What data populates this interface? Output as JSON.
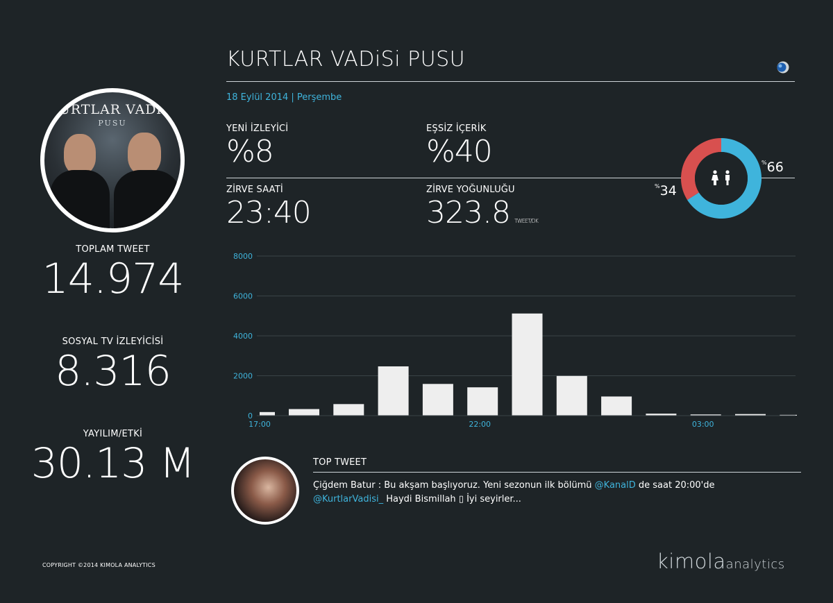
{
  "poster": {
    "title": "KURTLAR VADiSi",
    "subtitle": "PUSU"
  },
  "left_stats": [
    {
      "label": "TOPLAM TWEET",
      "value": "14.974"
    },
    {
      "label": "SOSYAL TV İZLEYİCİSİ",
      "value": "8.316"
    },
    {
      "label": "YAYILIM/ETKİ",
      "value": "30.13 M"
    }
  ],
  "header": {
    "title": "KURTLAR VADiSi PUSU",
    "date": "18 Eylül 2014 | Perşembe"
  },
  "kpis": {
    "new_viewers": {
      "label": "YENİ İZLEYİCİ",
      "value": "%8"
    },
    "unique_content": {
      "label": "EŞSİZ İÇERİK",
      "value": "%40"
    },
    "peak_hour": {
      "label": "ZİRVE SAATİ",
      "value": "23:40"
    },
    "peak_density": {
      "label": "ZİRVE YOĞUNLUĞU",
      "value": "323.8",
      "unit": "TWEET/DK"
    }
  },
  "gender": {
    "female": {
      "pct": 34,
      "label": "34",
      "prefix": "%",
      "color": "#d8504f"
    },
    "male": {
      "pct": 66,
      "label": "66",
      "prefix": "%",
      "color": "#3fb4dc"
    },
    "center_color": "#1e2427"
  },
  "chart_data": {
    "type": "bar",
    "title": "",
    "xlabel": "",
    "ylabel": "",
    "ylim": [
      0,
      8000
    ],
    "yticks": [
      "0",
      "2000",
      "4000",
      "6000",
      "8000"
    ],
    "ytick_values": [
      0,
      2000,
      4000,
      6000,
      8000
    ],
    "xticks": [
      {
        "label": "17:00",
        "index": 0
      },
      {
        "label": "22:00",
        "index": 5
      },
      {
        "label": "03:00",
        "index": 10
      }
    ],
    "values": [
      180,
      330,
      580,
      2470,
      1590,
      1420,
      5120,
      1990,
      960,
      100,
      60,
      80,
      40
    ],
    "bar_color": "#eeeeee",
    "axis_color": "#3fb4dc",
    "grid_color": "#3a4347"
  },
  "top_tweet": {
    "heading": "TOP TWEET",
    "author": "Çiğdem Batur",
    "separator": " : ",
    "text_1": "Bu akşam başlıyoruz. Yeni sezonun ilk bölümü ",
    "mention_1": "@KanalD",
    "text_2": " de saat 20:00'de ",
    "mention_2": "@KurtlarVadisi_",
    "text_3": " Haydi Bismillah ▯ İyi seyirler..."
  },
  "footer": {
    "copyright": "COPYRIGHT ©2014 KIMOLA ANALYTICS",
    "brand_main": "kimola",
    "brand_sub": "analytics"
  },
  "colors": {
    "accent": "#3fb4dc",
    "background": "#1e2427",
    "female": "#d8504f",
    "male": "#3fb4dc"
  }
}
